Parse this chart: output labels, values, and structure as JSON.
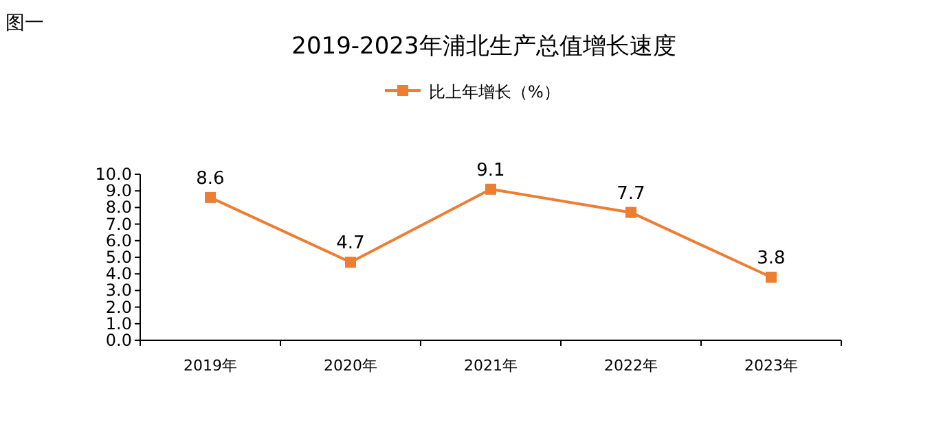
{
  "chart_data": {
    "type": "line",
    "title": "2019-2023年浦北生产总值增长速度",
    "annotations": [
      "图一"
    ],
    "categories": [
      "2019年",
      "2020年",
      "2021年",
      "2022年",
      "2023年"
    ],
    "series": [
      {
        "name": "比上年增长（%）",
        "color": "#ed7d31",
        "values": [
          8.6,
          4.7,
          9.1,
          7.7,
          3.8
        ]
      }
    ],
    "ylim": [
      0,
      10
    ],
    "yticks": [
      {
        "value": 0,
        "label": "0.0"
      },
      {
        "value": 1,
        "label": "1.0"
      },
      {
        "value": 2,
        "label": "2.0"
      },
      {
        "value": 3,
        "label": "3.0"
      },
      {
        "value": 4,
        "label": "4.0"
      },
      {
        "value": 5,
        "label": "5.0"
      },
      {
        "value": 6,
        "label": "6.0"
      },
      {
        "value": 7,
        "label": "7.0"
      },
      {
        "value": 8,
        "label": "8.0"
      },
      {
        "value": 9,
        "label": "9.0"
      },
      {
        "value": 10,
        "label": "10.0"
      }
    ],
    "marker": "square",
    "line_style": "solid",
    "legend": "top",
    "grid": false,
    "data_labels": true
  }
}
